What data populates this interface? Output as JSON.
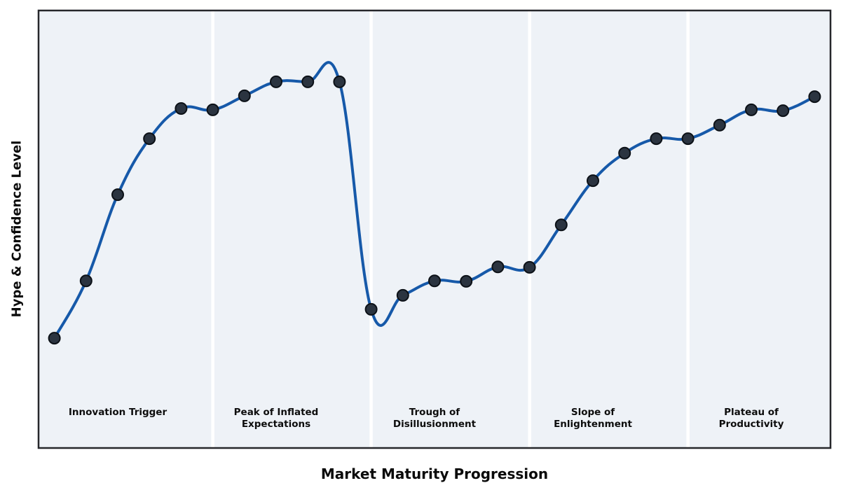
{
  "chart_data": {
    "type": "line",
    "title": "",
    "xlabel": "Market Maturity Progression",
    "ylabel": "Hype & Confidence Level",
    "x": [
      0,
      1,
      2,
      3,
      4,
      5,
      6,
      7,
      8,
      9,
      10,
      11,
      12,
      13,
      14,
      15,
      16,
      17,
      18,
      19,
      20,
      21,
      22,
      23,
      24
    ],
    "values": [
      25.1,
      38.2,
      57.9,
      70.7,
      77.6,
      77.3,
      80.5,
      83.7,
      83.7,
      83.7,
      31.7,
      34.9,
      38.2,
      38.1,
      41.4,
      41.3,
      51.0,
      61.1,
      67.4,
      70.7,
      70.7,
      73.8,
      77.3,
      77.1,
      80.3
    ],
    "xlim": [
      -0.5,
      24.5
    ],
    "ylim": [
      0,
      100
    ],
    "grid": false,
    "legend": "none",
    "curve_style": "smooth-spline-with-overshoot",
    "phases": [
      {
        "label": "Innovation Trigger",
        "x_start": -0.5,
        "x_end": 5,
        "label_x": 2,
        "label_y": 7
      },
      {
        "label": "Peak of Inflated\nExpectations",
        "x_start": 5,
        "x_end": 10,
        "label_x": 7,
        "label_y": 7
      },
      {
        "label": "Trough of\nDisillusionment",
        "x_start": 10,
        "x_end": 15,
        "label_x": 12,
        "label_y": 7
      },
      {
        "label": "Slope of\nEnlightenment",
        "x_start": 15,
        "x_end": 20,
        "label_x": 17,
        "label_y": 7
      },
      {
        "label": "Plateau of\nProductivity",
        "x_start": 20,
        "x_end": 24.5,
        "label_x": 22,
        "label_y": 7
      }
    ],
    "colors": {
      "figure_background": "#ffffff",
      "plot_background": "#eef2f7",
      "band_separator": "#ffffff",
      "curve": "#1659a9",
      "marker_fill": "#2b3440",
      "marker_edge": "#0c1117",
      "border": "#26272b",
      "text": "#0a0a0a"
    },
    "marker": {
      "shape": "circle",
      "radius": 8
    }
  }
}
